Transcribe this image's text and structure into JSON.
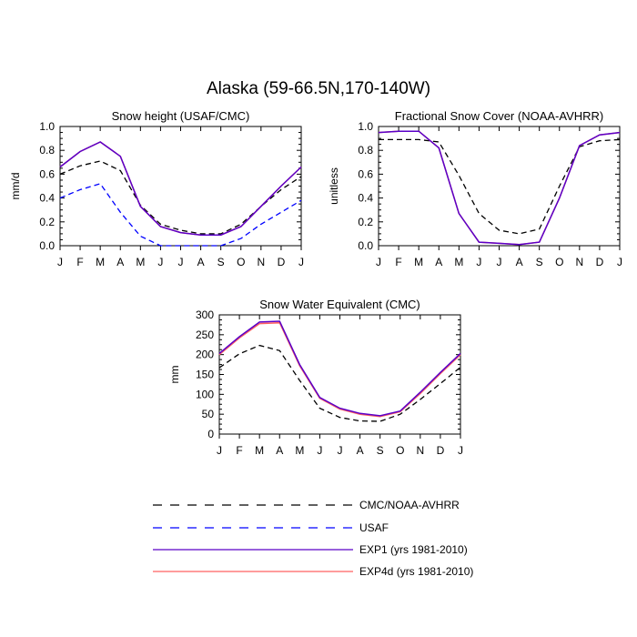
{
  "figure_title": "Alaska (59-66.5N,170-140W)",
  "chart_data": [
    {
      "type": "line",
      "title": "Snow height (USAF/CMC)",
      "xlabel": "",
      "ylabel": "mm/d",
      "categories": [
        "J",
        "F",
        "M",
        "A",
        "M",
        "J",
        "J",
        "A",
        "S",
        "O",
        "N",
        "D",
        "J"
      ],
      "ylim": [
        0,
        1.0
      ],
      "yticks": [
        0.0,
        0.2,
        0.4,
        0.6,
        0.8,
        1.0
      ],
      "ytick_labels": [
        "0.0",
        "0.2",
        "0.4",
        "0.6",
        "0.8",
        "1.0"
      ],
      "series": [
        {
          "name": "CMC/NOAA-AVHRR",
          "color": "#000000",
          "dash": true,
          "values": [
            0.6,
            0.67,
            0.71,
            0.63,
            0.34,
            0.18,
            0.13,
            0.1,
            0.1,
            0.18,
            0.33,
            0.47,
            0.58
          ]
        },
        {
          "name": "USAF",
          "color": "#0000ff",
          "dash": true,
          "values": [
            0.4,
            0.47,
            0.52,
            0.28,
            0.08,
            0.0,
            0.0,
            0.0,
            0.0,
            0.06,
            0.18,
            0.28,
            0.38
          ]
        },
        {
          "name": "EXP1 (yrs 1981-2010)",
          "color": "#5a00c8",
          "dash": false,
          "values": [
            0.66,
            0.79,
            0.87,
            0.75,
            0.33,
            0.16,
            0.11,
            0.09,
            0.09,
            0.16,
            0.33,
            0.5,
            0.66
          ]
        },
        {
          "name": "EXP4d (yrs 1981-2010)",
          "color": "#ff6060",
          "dash": false,
          "values": [
            0.66,
            0.79,
            0.87,
            0.75,
            0.33,
            0.16,
            0.11,
            0.09,
            0.09,
            0.16,
            0.33,
            0.5,
            0.66
          ]
        }
      ]
    },
    {
      "type": "line",
      "title": "Fractional Snow Cover (NOAA-AVHRR)",
      "xlabel": "",
      "ylabel": "unitless",
      "categories": [
        "J",
        "F",
        "M",
        "A",
        "M",
        "J",
        "J",
        "A",
        "S",
        "O",
        "N",
        "D",
        "J"
      ],
      "ylim": [
        0,
        1.0
      ],
      "yticks": [
        0.0,
        0.2,
        0.4,
        0.6,
        0.8,
        1.0
      ],
      "ytick_labels": [
        "0.0",
        "0.2",
        "0.4",
        "0.6",
        "0.8",
        "1.0"
      ],
      "series": [
        {
          "name": "CMC/NOAA-AVHRR",
          "color": "#000000",
          "dash": true,
          "values": [
            0.89,
            0.89,
            0.89,
            0.87,
            0.59,
            0.27,
            0.13,
            0.1,
            0.14,
            0.5,
            0.83,
            0.88,
            0.89
          ]
        },
        {
          "name": "EXP1 (yrs 1981-2010)",
          "color": "#5a00c8",
          "dash": false,
          "values": [
            0.95,
            0.96,
            0.96,
            0.82,
            0.27,
            0.03,
            0.02,
            0.01,
            0.03,
            0.4,
            0.84,
            0.93,
            0.95
          ]
        },
        {
          "name": "EXP4d (yrs 1981-2010)",
          "color": "#ff6060",
          "dash": false,
          "values": [
            0.95,
            0.96,
            0.96,
            0.82,
            0.27,
            0.03,
            0.02,
            0.01,
            0.03,
            0.4,
            0.84,
            0.93,
            0.95
          ]
        }
      ]
    },
    {
      "type": "line",
      "title": "Snow Water Equivalent (CMC)",
      "xlabel": "",
      "ylabel": "mm",
      "categories": [
        "J",
        "F",
        "M",
        "A",
        "M",
        "J",
        "J",
        "A",
        "S",
        "O",
        "N",
        "D",
        "J"
      ],
      "ylim": [
        0,
        300
      ],
      "yticks": [
        0,
        50,
        100,
        150,
        200,
        250,
        300
      ],
      "ytick_labels": [
        "0",
        "50",
        "100",
        "150",
        "200",
        "250",
        "300"
      ],
      "series": [
        {
          "name": "CMC/NOAA-AVHRR",
          "color": "#000000",
          "dash": true,
          "values": [
            167,
            202,
            223,
            210,
            135,
            65,
            42,
            33,
            32,
            50,
            87,
            127,
            168
          ]
        },
        {
          "name": "EXP1 (yrs 1981-2010)",
          "color": "#5a00c8",
          "dash": false,
          "values": [
            203,
            245,
            282,
            284,
            175,
            92,
            65,
            52,
            46,
            58,
            105,
            155,
            203
          ]
        },
        {
          "name": "EXP4d (yrs 1981-2010)",
          "color": "#ff6060",
          "dash": false,
          "values": [
            200,
            242,
            278,
            280,
            172,
            90,
            63,
            50,
            44,
            56,
            102,
            152,
            200
          ]
        }
      ]
    }
  ],
  "legend": {
    "placement": "bottom",
    "entries": [
      {
        "label": "CMC/NOAA-AVHRR",
        "color": "#000000",
        "dash": true
      },
      {
        "label": "USAF",
        "color": "#0000ff",
        "dash": true
      },
      {
        "label": "EXP1 (yrs 1981-2010)",
        "color": "#5a00c8",
        "dash": false
      },
      {
        "label": "EXP4d (yrs 1981-2010)",
        "color": "#ff6060",
        "dash": false
      }
    ]
  }
}
